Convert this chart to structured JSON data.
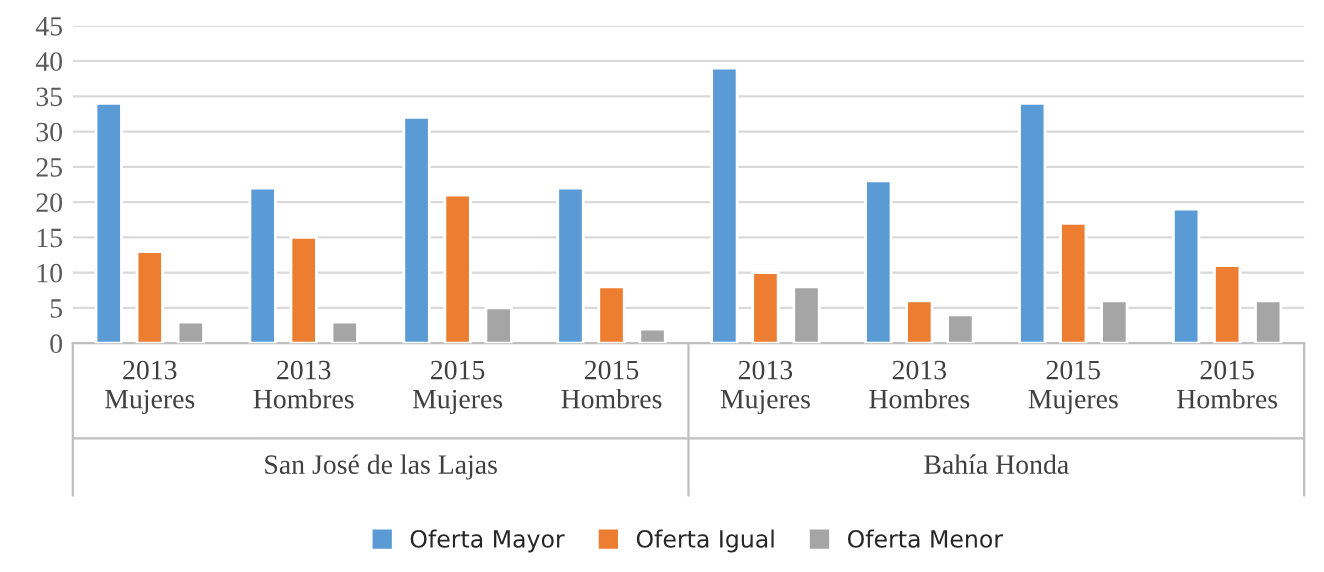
{
  "chart_data": {
    "type": "bar",
    "categories": [
      "2013\nMujeres",
      "2013\nHombres",
      "2015\nMujeres",
      "2015\nHombres",
      "2013\nMujeres",
      "2013\nHombres",
      "2015\nMujeres",
      "2015\nHombres"
    ],
    "series": [
      {
        "name": "Oferta Mayor",
        "color": "#5b9bd5",
        "values": [
          34,
          22,
          32,
          22,
          39,
          23,
          34,
          19
        ]
      },
      {
        "name": "Oferta Igual",
        "color": "#ed7d31",
        "values": [
          13,
          15,
          21,
          8,
          10,
          6,
          17,
          11
        ]
      },
      {
        "name": "Oferta Menor",
        "color": "#a5a5a5",
        "values": [
          3,
          3,
          5,
          2,
          8,
          4,
          6,
          6
        ]
      }
    ],
    "annotations": [
      "San José de las Lajas",
      "Bahía Honda"
    ],
    "ylim": [
      0,
      45
    ],
    "yticks": [
      0,
      5,
      10,
      15,
      20,
      25,
      30,
      35,
      40,
      45
    ],
    "grid": "y",
    "legend": "bottom"
  }
}
